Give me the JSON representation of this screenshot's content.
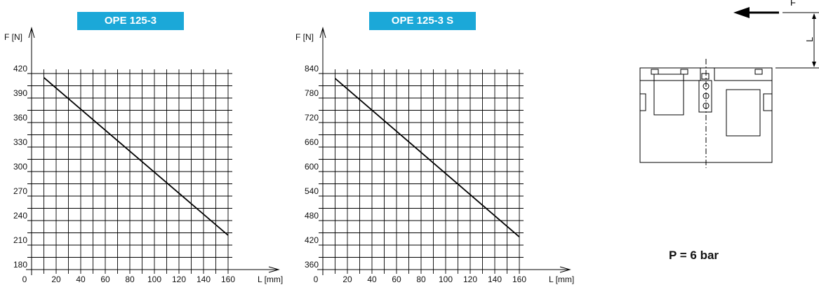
{
  "pressure_label": "P = 6 bar",
  "colors": {
    "badge": "#1ba8d8",
    "badge_text": "#ffffff",
    "grid": "#000000"
  },
  "diagram": {
    "force_label": "F",
    "length_label": "L"
  },
  "chart_data": [
    {
      "type": "line",
      "title": "OPE 125-3",
      "ylabel": "F [N]",
      "xlabel": "L [mm]",
      "xlim": [
        0,
        160
      ],
      "ylim": [
        180,
        420
      ],
      "x_ticks": [
        0,
        20,
        40,
        60,
        80,
        100,
        120,
        140,
        160
      ],
      "y_ticks": [
        180,
        210,
        240,
        270,
        300,
        330,
        360,
        390,
        420
      ],
      "grid": true,
      "series": [
        {
          "x": [
            10,
            160
          ],
          "y": [
            415,
            222
          ]
        }
      ]
    },
    {
      "type": "line",
      "title": "OPE 125-3 S",
      "ylabel": "F [N]",
      "xlabel": "L [mm]",
      "xlim": [
        0,
        160
      ],
      "ylim": [
        360,
        840
      ],
      "x_ticks": [
        0,
        20,
        40,
        60,
        80,
        100,
        120,
        140,
        160
      ],
      "y_ticks": [
        360,
        420,
        480,
        540,
        600,
        660,
        720,
        780,
        840
      ],
      "grid": true,
      "series": [
        {
          "x": [
            10,
            160
          ],
          "y": [
            828,
            440
          ]
        }
      ]
    }
  ]
}
